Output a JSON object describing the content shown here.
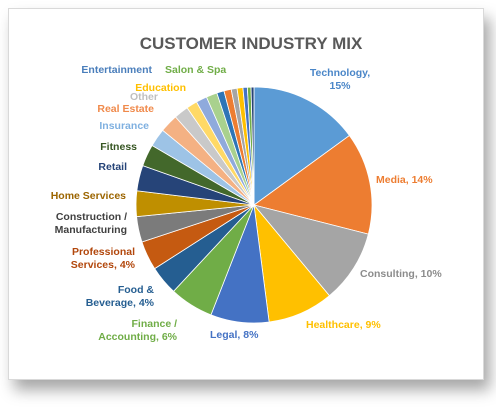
{
  "chart_data": {
    "type": "pie",
    "title": "CUSTOMER INDUSTRY MIX",
    "slices": [
      {
        "name": "Technology",
        "value": 15,
        "color": "#5b9bd5",
        "label_lines": [
          "Technology,",
          "15%"
        ],
        "label_color": "#4a86c8"
      },
      {
        "name": "Media",
        "value": 14,
        "color": "#ed7d31",
        "label_lines": [
          "Media, 14%"
        ],
        "label_color": "#ed7d31"
      },
      {
        "name": "Consulting",
        "value": 10,
        "color": "#a5a5a5",
        "label_lines": [
          "Consulting, 10%"
        ],
        "label_color": "#8c8c8c"
      },
      {
        "name": "Healthcare",
        "value": 9,
        "color": "#ffc000",
        "label_lines": [
          "Healthcare, 9%"
        ],
        "label_color": "#ffc000"
      },
      {
        "name": "Legal",
        "value": 8,
        "color": "#4472c4",
        "label_lines": [
          "Legal, 8%"
        ],
        "label_color": "#4472c4"
      },
      {
        "name": "Finance / Accounting",
        "value": 6,
        "color": "#70ad47",
        "label_lines": [
          "Finance /",
          "Accounting, 6%"
        ],
        "label_color": "#70ad47"
      },
      {
        "name": "Food & Beverage",
        "value": 4,
        "color": "#255e91",
        "label_lines": [
          "Food &",
          "Beverage, 4%"
        ],
        "label_color": "#255e91"
      },
      {
        "name": "Professional Services",
        "value": 4,
        "color": "#c55a11",
        "label_lines": [
          "Professional",
          "Services, 4%"
        ],
        "label_color": "#b2470c"
      },
      {
        "name": "Construction / Manufacturing",
        "value": 3.5,
        "color": "#7b7b7b",
        "label_lines": [
          "Construction /",
          "Manufacturing"
        ],
        "label_color": "#404040"
      },
      {
        "name": "Home Services",
        "value": 3.5,
        "color": "#bf8f00",
        "label_lines": [
          "Home Services"
        ],
        "label_color": "#9c6500"
      },
      {
        "name": "Retail",
        "value": 3.5,
        "color": "#264478",
        "label_lines": [
          "Retail"
        ],
        "label_color": "#264478"
      },
      {
        "name": "Fitness",
        "value": 3,
        "color": "#43682b",
        "label_lines": [
          "Fitness"
        ],
        "label_color": "#375623"
      },
      {
        "name": "Insurance",
        "value": 2.5,
        "color": "#9dc3e6",
        "label_lines": [
          "Insurance"
        ],
        "label_color": "#7fb0e0"
      },
      {
        "name": "Real Estate",
        "value": 2.5,
        "color": "#f4b183",
        "label_lines": [
          "Real Estate"
        ],
        "label_color": "#f08a4b"
      },
      {
        "name": "Other",
        "value": 2,
        "color": "#c9c9c9",
        "label_lines": [
          "Other"
        ],
        "label_color": "#bfbfbf"
      },
      {
        "name": "Education",
        "value": 1.5,
        "color": "#ffd966",
        "label_lines": [
          "Education"
        ],
        "label_color": "#ffc000"
      },
      {
        "name": "Entertainment",
        "value": 1.5,
        "color": "#8faadc",
        "label_lines": [
          "Entertainment"
        ],
        "label_color": "#4a7ebb"
      },
      {
        "name": "Salon & Spa",
        "value": 1.5,
        "color": "#a9d18e",
        "label_lines": [
          "Salon & Spa"
        ],
        "label_color": "#70ad47"
      },
      {
        "name": "",
        "value": 1,
        "color": "#2e75b6",
        "label_lines": [],
        "label_color": "#000000"
      },
      {
        "name": "",
        "value": 1,
        "color": "#ed7d31",
        "label_lines": [],
        "label_color": "#000000"
      },
      {
        "name": "",
        "value": 0.8,
        "color": "#a5a5a5",
        "label_lines": [],
        "label_color": "#000000"
      },
      {
        "name": "",
        "value": 0.8,
        "color": "#ffc000",
        "label_lines": [],
        "label_color": "#000000"
      },
      {
        "name": "",
        "value": 0.6,
        "color": "#4472c4",
        "label_lines": [],
        "label_color": "#000000"
      },
      {
        "name": "",
        "value": 0.5,
        "color": "#70ad47",
        "label_lines": [],
        "label_color": "#000000"
      },
      {
        "name": "",
        "value": 0.4,
        "color": "#264478",
        "label_lines": [],
        "label_color": "#000000"
      }
    ]
  }
}
